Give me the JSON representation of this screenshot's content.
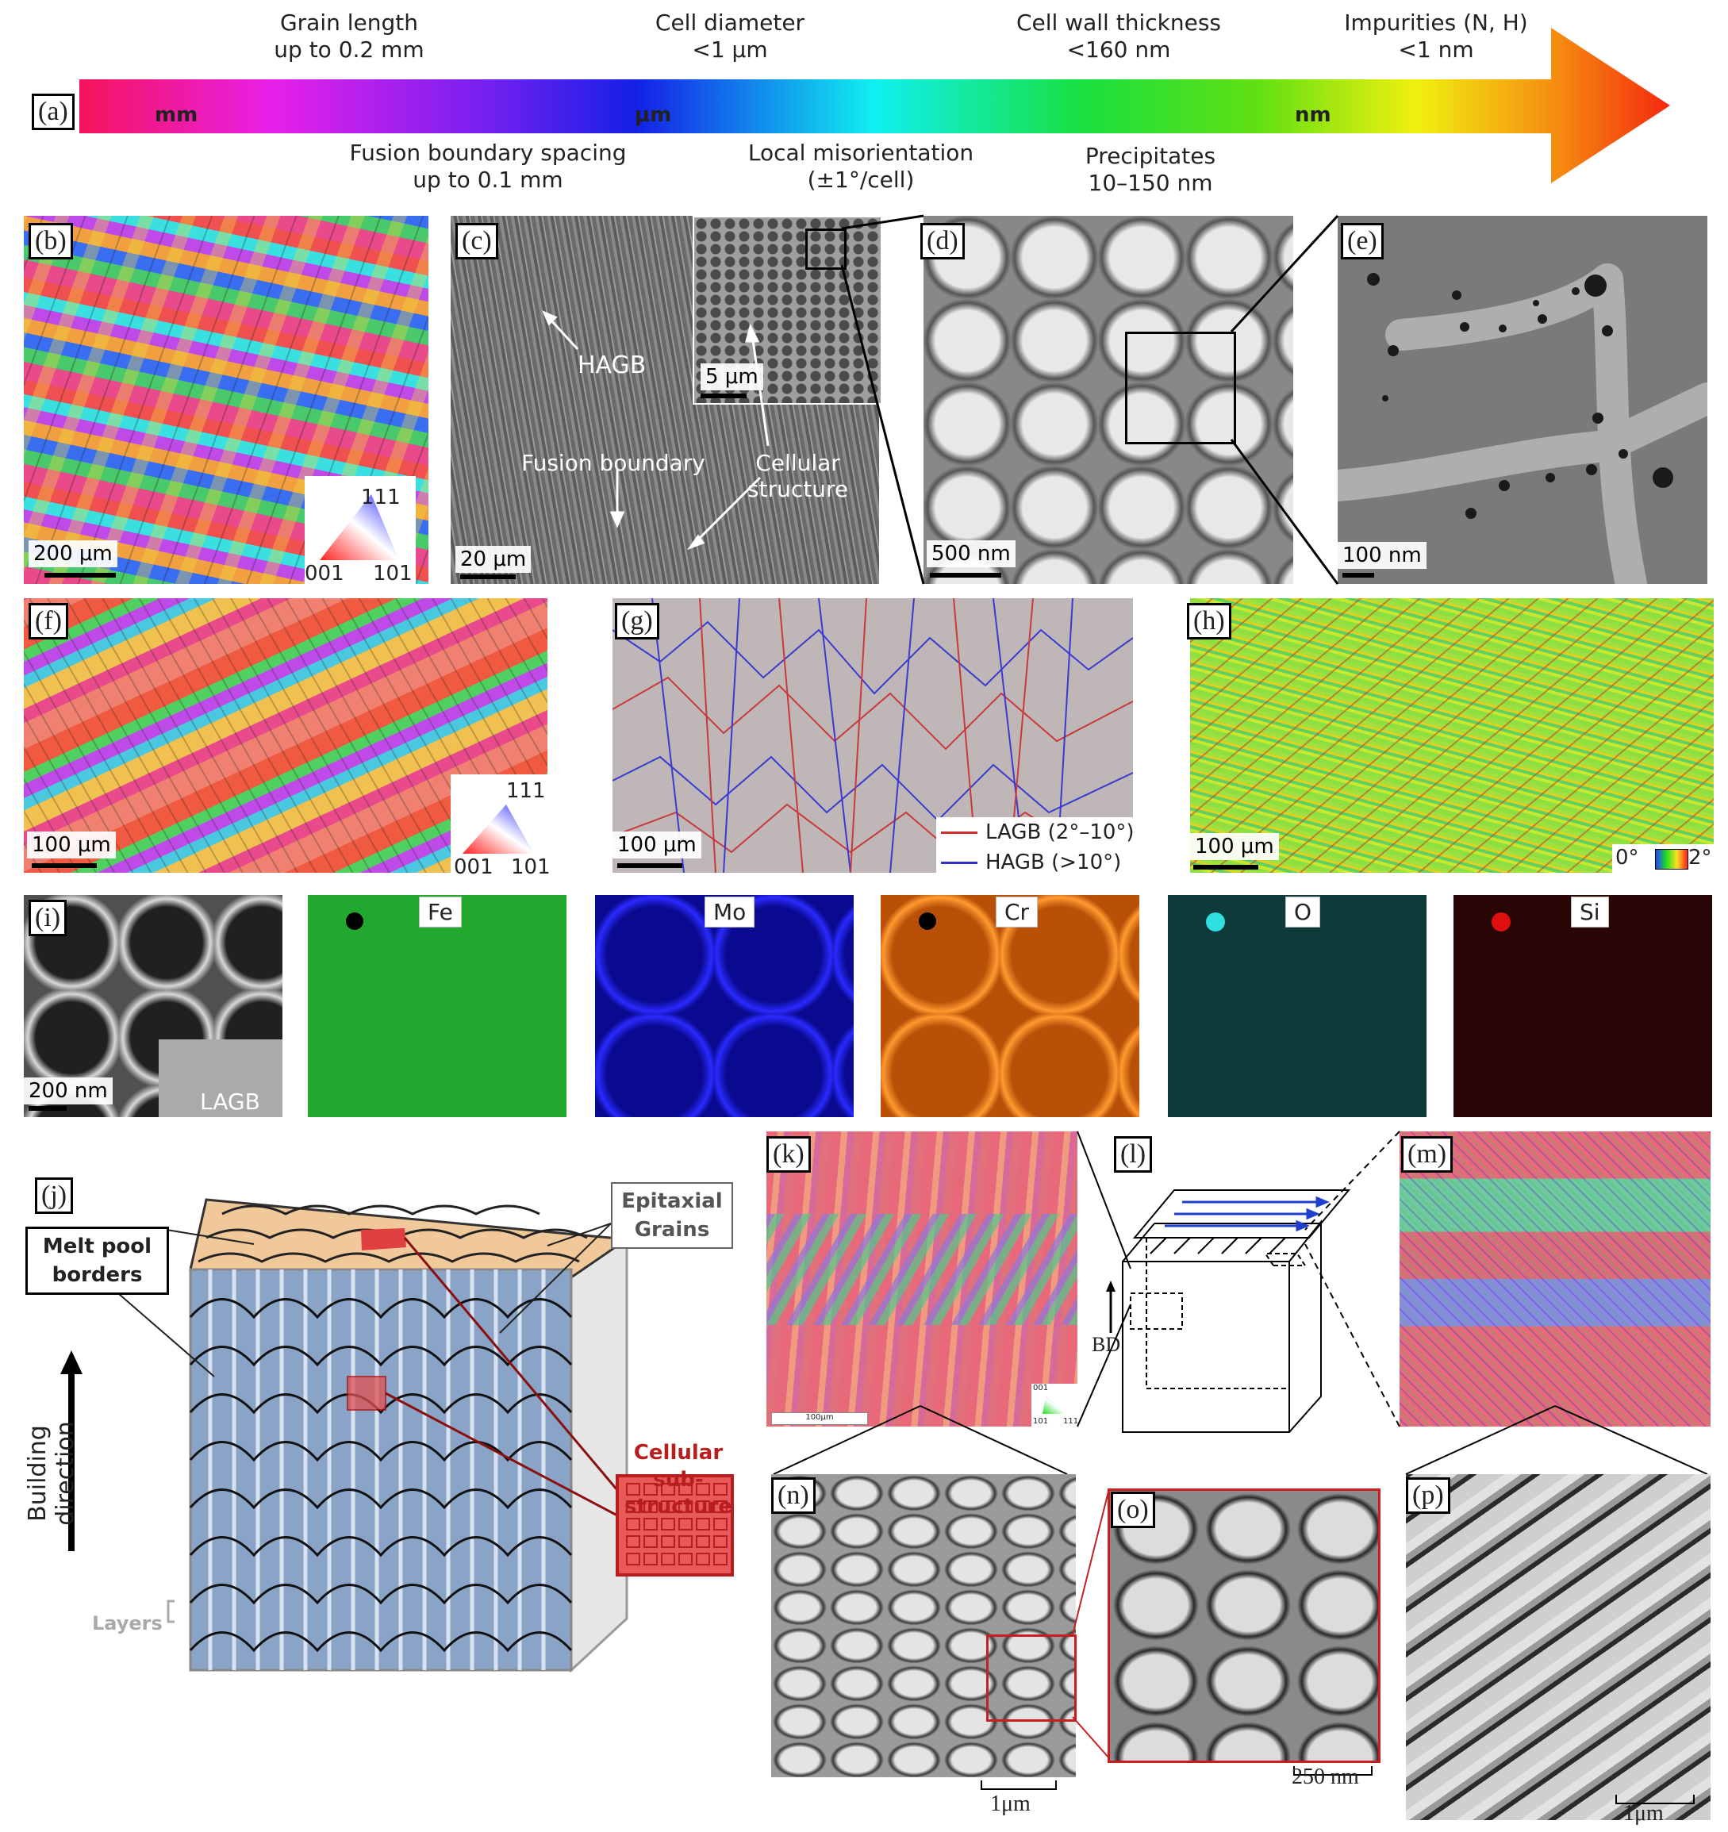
{
  "panel_labels": {
    "a": "(a)",
    "b": "(b)",
    "c": "(c)",
    "d": "(d)",
    "e": "(e)",
    "f": "(f)",
    "g": "(g)",
    "h": "(h)",
    "i": "(i)",
    "j": "(j)",
    "k": "(k)",
    "l": "(l)",
    "m": "(m)",
    "n": "(n)",
    "o": "(o)",
    "p": "(p)"
  },
  "scale_arrow": {
    "top": [
      {
        "line1": "Grain length",
        "line2": "up to 0.2 mm"
      },
      {
        "line1": "Cell diameter",
        "line2": "<1 μm"
      },
      {
        "line1": "Cell wall thickness",
        "line2": "<160 nm"
      },
      {
        "line1": "Impurities (N, H)",
        "line2": "<1 nm"
      }
    ],
    "bottom": [
      {
        "line1": "Fusion boundary spacing",
        "line2": "up to 0.1 mm"
      },
      {
        "line1": "Local misorientation",
        "line2": "(±1°/cell)"
      },
      {
        "line1": "Precipitates",
        "line2": "10–150 nm"
      }
    ],
    "units": [
      "mm",
      "μm",
      "nm"
    ]
  },
  "panel_b": {
    "scalebar": "200 μm",
    "ipf": {
      "top": "111",
      "left": "001",
      "right": "101"
    }
  },
  "panel_c": {
    "scalebar": "20 μm",
    "inset_scalebar": "5 μm",
    "hagb": "HAGB",
    "fusion": "Fusion boundary",
    "cellular_1": "Cellular",
    "cellular_2": "structure"
  },
  "panel_d": {
    "scalebar": "500 nm"
  },
  "panel_e": {
    "scalebar": "100 nm"
  },
  "panel_f": {
    "scalebar": "100 μm",
    "ipf": {
      "top": "111",
      "left": "001",
      "right": "101"
    }
  },
  "panel_g": {
    "scalebar": "100 μm",
    "legend": [
      {
        "label": "LAGB (2°–10°)",
        "color": "#d03030"
      },
      {
        "label": "HAGB (>10°)",
        "color": "#3030c8"
      }
    ]
  },
  "panel_h": {
    "scalebar": "100 μm",
    "cbar_min": "0°",
    "cbar_max": "2°"
  },
  "panel_i": {
    "scalebar": "200 nm",
    "lagb": "LAGB",
    "maps": [
      {
        "element": "Fe",
        "color": "#22a82e"
      },
      {
        "element": "Mo",
        "color": "#1a1ae0"
      },
      {
        "element": "Cr",
        "color": "#ee7a10"
      },
      {
        "element": "O",
        "color": "#1a8a8a"
      },
      {
        "element": "Si",
        "color": "#7a0a0a"
      }
    ]
  },
  "panel_j": {
    "melt_pool_1": "Melt pool",
    "melt_pool_2": "borders",
    "epitaxial_1": "Epitaxial",
    "epitaxial_2": "Grains",
    "cellular_1": "Cellular",
    "cellular_2": "sub-structure",
    "building": "Building direction",
    "layers": "Layers"
  },
  "panel_k": {
    "scalebar": "100μm",
    "ipf": {
      "top": "001",
      "left": "101",
      "right": "111"
    }
  },
  "panel_l": {
    "bd": "BD"
  },
  "panel_n": {
    "scalebar": "1μm"
  },
  "panel_o": {
    "scalebar": "250 nm"
  },
  "panel_p": {
    "scalebar": "1μm"
  },
  "colors": {
    "frame": "#000000",
    "red_box": "#c81e1e",
    "cellular_red": "#e05050"
  }
}
